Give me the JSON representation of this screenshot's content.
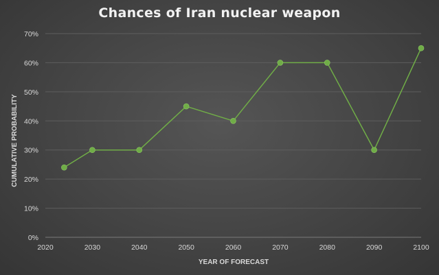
{
  "chart_data": {
    "type": "line",
    "title": "Chances of Iran nuclear weapon",
    "xlabel": "YEAR OF FORECAST",
    "ylabel": "CUMULATIVE PROBABILITY",
    "xlim": [
      2020,
      2100
    ],
    "ylim": [
      0,
      70
    ],
    "x_ticks": [
      2020,
      2030,
      2040,
      2050,
      2060,
      2070,
      2080,
      2090,
      2100
    ],
    "y_ticks": [
      "0%",
      "10%",
      "20%",
      "30%",
      "40%",
      "50%",
      "60%",
      "70%"
    ],
    "y_tick_values": [
      0,
      10,
      20,
      30,
      40,
      50,
      60,
      70
    ],
    "grid": true,
    "legend": "none",
    "series": [
      {
        "x": [
          2024,
          2030,
          2040,
          2050,
          2060,
          2070,
          2080,
          2090,
          2100
        ],
        "values": [
          24,
          30,
          30,
          45,
          40,
          60,
          60,
          30,
          65
        ],
        "color": "#70ad47"
      }
    ]
  },
  "colors": {
    "background": "#474747",
    "series_line": "#70ad47",
    "text": "#d9d9d9"
  }
}
